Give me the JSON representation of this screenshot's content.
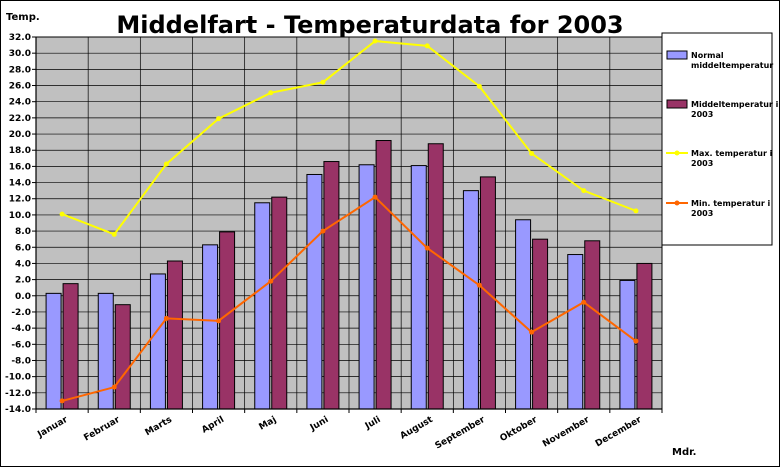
{
  "chart_data": {
    "type": "bar",
    "title": "Middelfart - Temperaturdata for 2003",
    "ylabel": "Temp.",
    "xlabel": "Mdr.",
    "ylim": [
      -14,
      32
    ],
    "ytick_step": 2,
    "grid": true,
    "legend_position": "right",
    "categories": [
      "Januar",
      "Februar",
      "Marts",
      "April",
      "Maj",
      "Juni",
      "Juli",
      "August",
      "September",
      "Oktober",
      "November",
      "December"
    ],
    "series": [
      {
        "name_lines": [
          "Normal",
          "middeltemperatur"
        ],
        "type": "bar",
        "color": "#9999ff",
        "values": [
          0.3,
          0.3,
          2.7,
          6.3,
          11.5,
          15.0,
          16.2,
          16.1,
          13.0,
          9.4,
          5.1,
          1.9
        ]
      },
      {
        "name_lines": [
          "Middeltemperatur i",
          "2003"
        ],
        "type": "bar",
        "color": "#993366",
        "values": [
          1.5,
          -1.1,
          4.3,
          7.9,
          12.2,
          16.6,
          19.2,
          18.8,
          14.7,
          7.0,
          6.8,
          4.0
        ]
      },
      {
        "name_lines": [
          "Max. temperatur i",
          "2003"
        ],
        "type": "line",
        "color": "#ffff00",
        "values": [
          10.1,
          7.6,
          16.3,
          21.9,
          25.1,
          26.4,
          31.5,
          30.9,
          25.9,
          17.6,
          13.0,
          10.5
        ]
      },
      {
        "name_lines": [
          "Min. temperatur i",
          "2003"
        ],
        "type": "line",
        "color": "#ff6600",
        "values": [
          -13.0,
          -11.3,
          -2.8,
          -3.1,
          1.8,
          8.0,
          12.2,
          5.9,
          1.3,
          -4.5,
          -0.8,
          -5.6
        ]
      }
    ]
  }
}
